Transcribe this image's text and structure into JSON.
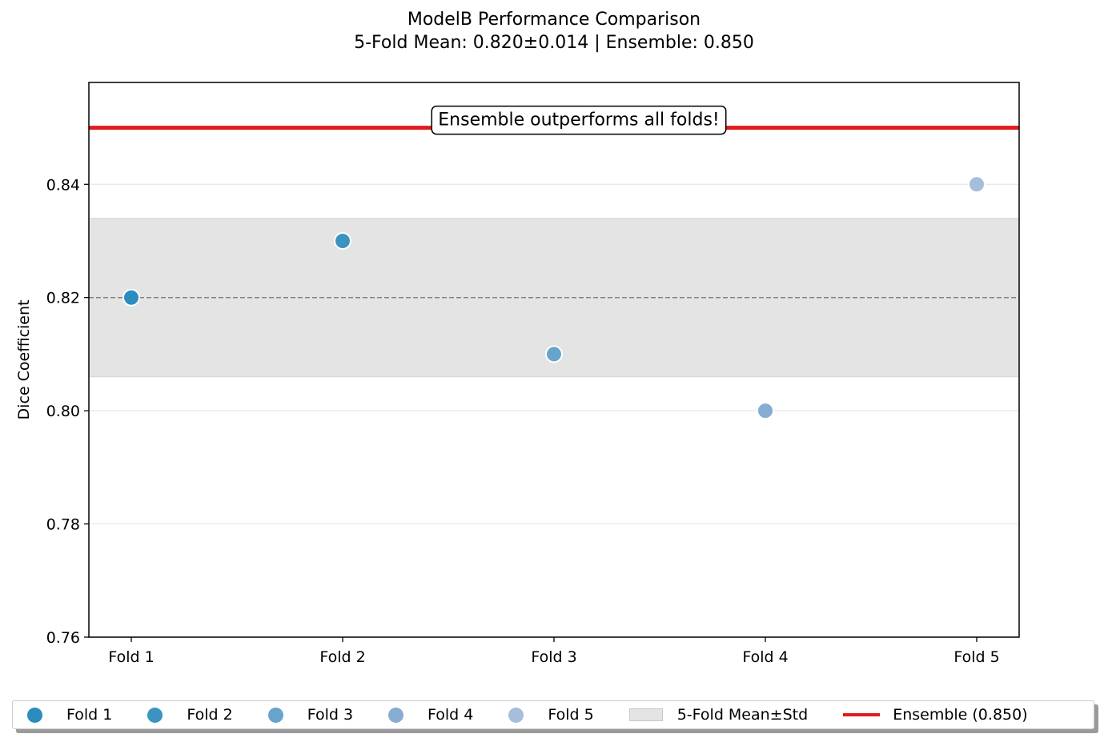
{
  "chart_data": {
    "type": "scatter",
    "title": "ModelB Performance Comparison",
    "subtitle": "5-Fold Mean: 0.820±0.014 | Ensemble: 0.850",
    "xlabel": "",
    "ylabel": "Dice Coefficient",
    "categories": [
      "Fold 1",
      "Fold 2",
      "Fold 3",
      "Fold 4",
      "Fold 5"
    ],
    "series": [
      {
        "name": "Fold 1",
        "x": "Fold 1",
        "y": 0.82,
        "color": "#2b8cbe"
      },
      {
        "name": "Fold 2",
        "x": "Fold 2",
        "y": 0.83,
        "color": "#3c93c2"
      },
      {
        "name": "Fold 3",
        "x": "Fold 3",
        "y": 0.81,
        "color": "#67a4cc"
      },
      {
        "name": "Fold 4",
        "x": "Fold 4",
        "y": 0.8,
        "color": "#86acd1"
      },
      {
        "name": "Fold 5",
        "x": "Fold 5",
        "y": 0.84,
        "color": "#a6bddb"
      }
    ],
    "mean": 0.82,
    "std": 0.014,
    "mean_std_label": "5-Fold Mean±Std",
    "ensemble": 0.85,
    "ensemble_label": "Ensemble (0.850)",
    "ensemble_color": "#e31a1c",
    "annotation": "Ensemble outperforms all folds!",
    "ylim": [
      0.76,
      0.858
    ],
    "yticks": [
      0.76,
      0.78,
      0.8,
      0.82,
      0.84
    ],
    "ytick_labels": [
      "0.76",
      "0.78",
      "0.80",
      "0.82",
      "0.84"
    ],
    "grid": "horizontal",
    "legend_position": "bottom"
  }
}
